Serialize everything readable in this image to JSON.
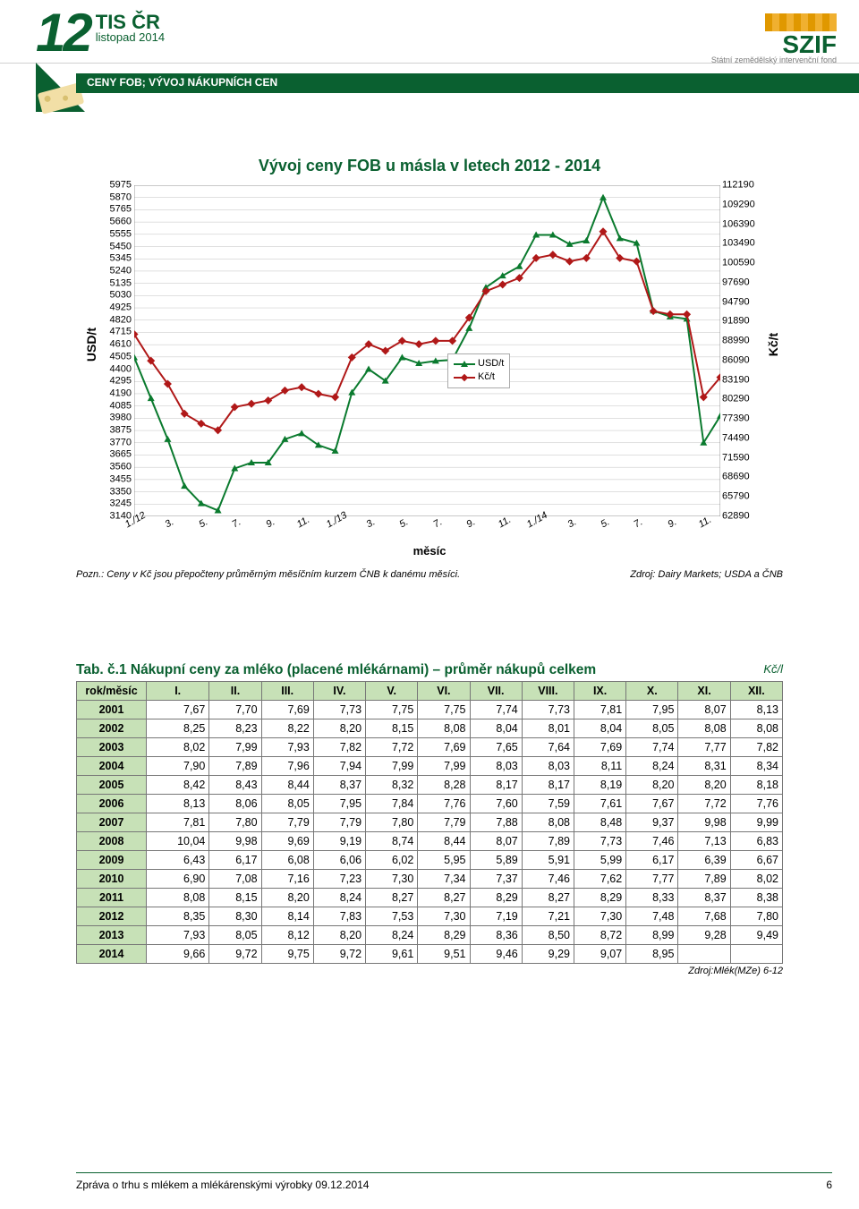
{
  "header": {
    "issue_number": "12",
    "brand": "TIS ČR",
    "issue_date": "listopad 2014",
    "section_title": "CENY FOB; VÝVOJ NÁKUPNÍCH CEN",
    "right_logo_name": "SZIF",
    "right_logo_sub": "Státní zemědělský intervenční fond"
  },
  "chart": {
    "type": "line",
    "title": "Vývoj ceny FOB u másla v letech 2012 - 2014",
    "x_label": "měsíc",
    "y_label_left": "USD/t",
    "y_label_right": "Kč/t",
    "footnote_left": "Pozn.: Ceny v Kč jsou přepočteny průměrným měsíčním kurzem ČNB k danému měsíci.",
    "footnote_right": "Zdroj: Dairy Markets; USDA a ČNB",
    "background_color": "#ffffff",
    "grid_color": "#b0b0b0",
    "series": [
      {
        "name": "USD/t",
        "color": "#0a7a2e",
        "marker": "triangle",
        "marker_color": "#0a7a2e"
      },
      {
        "name": "Kč/t",
        "color": "#b01818",
        "marker": "diamond",
        "marker_color": "#b01818"
      }
    ],
    "x_categories": [
      "1./12",
      "3.",
      "5.",
      "7.",
      "9.",
      "11.",
      "1./13",
      "3.",
      "5.",
      "7.",
      "9.",
      "11.",
      "1./14",
      "3.",
      "5.",
      "7.",
      "9.",
      "11."
    ],
    "y_left_min": 3140,
    "y_left_max": 5975,
    "y_left_ticks": [
      3140,
      3245,
      3350,
      3455,
      3560,
      3665,
      3770,
      3875,
      3980,
      4085,
      4190,
      4295,
      4400,
      4505,
      4610,
      4715,
      4820,
      4925,
      5030,
      5135,
      5240,
      5345,
      5450,
      5555,
      5660,
      5765,
      5870,
      5975
    ],
    "y_right_min": 62890,
    "y_right_max": 112190,
    "y_right_ticks": [
      62890,
      65790,
      68690,
      71590,
      74490,
      77390,
      80290,
      83190,
      86090,
      88990,
      91890,
      94790,
      97690,
      100590,
      103490,
      106390,
      109290,
      112190
    ],
    "n_points": 36,
    "usd_values": [
      4500,
      4150,
      3800,
      3400,
      3250,
      3190,
      3550,
      3600,
      3600,
      3800,
      3850,
      3750,
      3700,
      4200,
      4400,
      4300,
      4500,
      4450,
      4470,
      4480,
      4750,
      5100,
      5200,
      5280,
      5550,
      5550,
      5470,
      5500,
      5870,
      5520,
      5480,
      4900,
      4850,
      4830,
      3770,
      4000
    ],
    "kc_rel_values": [
      0.55,
      0.47,
      0.4,
      0.31,
      0.28,
      0.26,
      0.33,
      0.34,
      0.35,
      0.38,
      0.39,
      0.37,
      0.36,
      0.48,
      0.52,
      0.5,
      0.53,
      0.52,
      0.53,
      0.53,
      0.6,
      0.68,
      0.7,
      0.72,
      0.78,
      0.79,
      0.77,
      0.78,
      0.86,
      0.78,
      0.77,
      0.62,
      0.61,
      0.61,
      0.36,
      0.42
    ]
  },
  "table": {
    "title": "Tab. č.1 Nákupní ceny za mléko (placené mlékárnami) – průměr nákupů celkem",
    "unit": "Kč/l",
    "source": "Zdroj:Mlék(MZe) 6-12",
    "header_bg": "#c7e1b7",
    "border_color": "#777777",
    "row_header": "rok/měsíc",
    "columns": [
      "I.",
      "II.",
      "III.",
      "IV.",
      "V.",
      "VI.",
      "VII.",
      "VIII.",
      "IX.",
      "X.",
      "XI.",
      "XII."
    ],
    "rows": [
      {
        "year": "2001",
        "v": [
          "7,67",
          "7,70",
          "7,69",
          "7,73",
          "7,75",
          "7,75",
          "7,74",
          "7,73",
          "7,81",
          "7,95",
          "8,07",
          "8,13"
        ]
      },
      {
        "year": "2002",
        "v": [
          "8,25",
          "8,23",
          "8,22",
          "8,20",
          "8,15",
          "8,08",
          "8,04",
          "8,01",
          "8,04",
          "8,05",
          "8,08",
          "8,08"
        ]
      },
      {
        "year": "2003",
        "v": [
          "8,02",
          "7,99",
          "7,93",
          "7,82",
          "7,72",
          "7,69",
          "7,65",
          "7,64",
          "7,69",
          "7,74",
          "7,77",
          "7,82"
        ]
      },
      {
        "year": "2004",
        "v": [
          "7,90",
          "7,89",
          "7,96",
          "7,94",
          "7,99",
          "7,99",
          "8,03",
          "8,03",
          "8,11",
          "8,24",
          "8,31",
          "8,34"
        ]
      },
      {
        "year": "2005",
        "v": [
          "8,42",
          "8,43",
          "8,44",
          "8,37",
          "8,32",
          "8,28",
          "8,17",
          "8,17",
          "8,19",
          "8,20",
          "8,20",
          "8,18"
        ]
      },
      {
        "year": "2006",
        "v": [
          "8,13",
          "8,06",
          "8,05",
          "7,95",
          "7,84",
          "7,76",
          "7,60",
          "7,59",
          "7,61",
          "7,67",
          "7,72",
          "7,76"
        ]
      },
      {
        "year": "2007",
        "v": [
          "7,81",
          "7,80",
          "7,79",
          "7,79",
          "7,80",
          "7,79",
          "7,88",
          "8,08",
          "8,48",
          "9,37",
          "9,98",
          "9,99"
        ]
      },
      {
        "year": "2008",
        "v": [
          "10,04",
          "9,98",
          "9,69",
          "9,19",
          "8,74",
          "8,44",
          "8,07",
          "7,89",
          "7,73",
          "7,46",
          "7,13",
          "6,83"
        ]
      },
      {
        "year": "2009",
        "v": [
          "6,43",
          "6,17",
          "6,08",
          "6,06",
          "6,02",
          "5,95",
          "5,89",
          "5,91",
          "5,99",
          "6,17",
          "6,39",
          "6,67"
        ]
      },
      {
        "year": "2010",
        "v": [
          "6,90",
          "7,08",
          "7,16",
          "7,23",
          "7,30",
          "7,34",
          "7,37",
          "7,46",
          "7,62",
          "7,77",
          "7,89",
          "8,02"
        ]
      },
      {
        "year": "2011",
        "v": [
          "8,08",
          "8,15",
          "8,20",
          "8,24",
          "8,27",
          "8,27",
          "8,29",
          "8,27",
          "8,29",
          "8,33",
          "8,37",
          "8,38"
        ]
      },
      {
        "year": "2012",
        "v": [
          "8,35",
          "8,30",
          "8,14",
          "7,83",
          "7,53",
          "7,30",
          "7,19",
          "7,21",
          "7,30",
          "7,48",
          "7,68",
          "7,80"
        ]
      },
      {
        "year": "2013",
        "v": [
          "7,93",
          "8,05",
          "8,12",
          "8,20",
          "8,24",
          "8,29",
          "8,36",
          "8,50",
          "8,72",
          "8,99",
          "9,28",
          "9,49"
        ]
      },
      {
        "year": "2014",
        "v": [
          "9,66",
          "9,72",
          "9,75",
          "9,72",
          "9,61",
          "9,51",
          "9,46",
          "9,29",
          "9,07",
          "8,95",
          "",
          ""
        ]
      }
    ]
  },
  "footer": {
    "text": "Zpráva o trhu s mlékem a mlékárenskými výrobky 09.12.2014",
    "page": "6"
  }
}
